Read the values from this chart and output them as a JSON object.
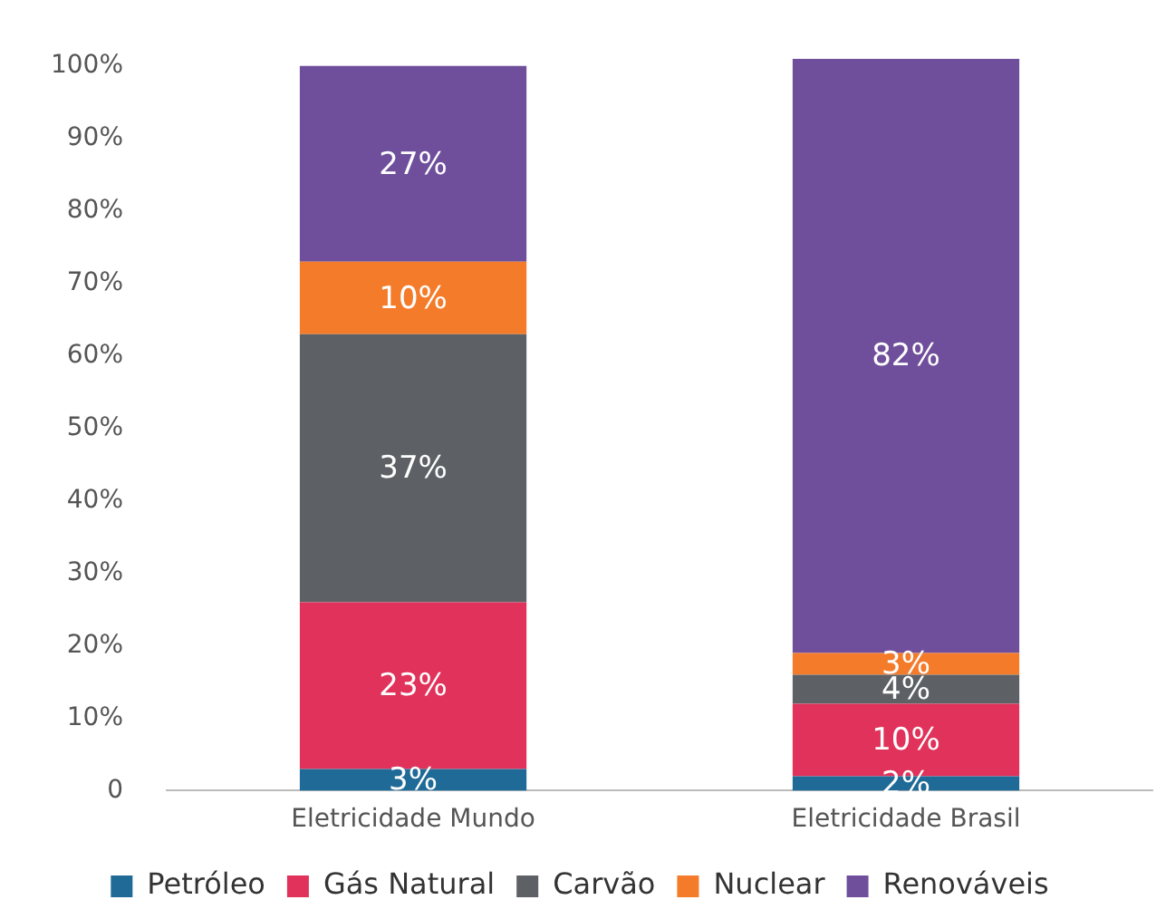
{
  "chart_data": {
    "type": "bar",
    "stacked": true,
    "categories": [
      "Eletricidade Mundo",
      "Eletricidade Brasil"
    ],
    "series": [
      {
        "name": "Petróleo",
        "color": "#1f6a96",
        "values": [
          3,
          2
        ],
        "value_labels": [
          "3%",
          "2%"
        ]
      },
      {
        "name": "Gás Natural",
        "color": "#e0325a",
        "values": [
          23,
          10
        ],
        "value_labels": [
          "23%",
          "10%"
        ]
      },
      {
        "name": "Carvão",
        "color": "#5d6165",
        "values": [
          37,
          4
        ],
        "value_labels": [
          "37%",
          "4%"
        ]
      },
      {
        "name": "Nuclear",
        "color": "#f47b2a",
        "values": [
          10,
          3
        ],
        "value_labels": [
          "10%",
          "3%"
        ]
      },
      {
        "name": "Renováveis",
        "color": "#6f4f9b",
        "values": [
          27,
          82
        ],
        "value_labels": [
          "27%",
          "82%"
        ]
      }
    ],
    "ylim": [
      0,
      101
    ],
    "yticks": [
      {
        "value": 0,
        "label": "0"
      },
      {
        "value": 10,
        "label": "10%"
      },
      {
        "value": 20,
        "label": "20%"
      },
      {
        "value": 30,
        "label": "30%"
      },
      {
        "value": 40,
        "label": "40%"
      },
      {
        "value": 50,
        "label": "50%"
      },
      {
        "value": 60,
        "label": "60%"
      },
      {
        "value": 70,
        "label": "70%"
      },
      {
        "value": 80,
        "label": "80%"
      },
      {
        "value": 90,
        "label": "90%"
      },
      {
        "value": 100,
        "label": "100%"
      }
    ],
    "grid": false,
    "legend": "bottom"
  }
}
